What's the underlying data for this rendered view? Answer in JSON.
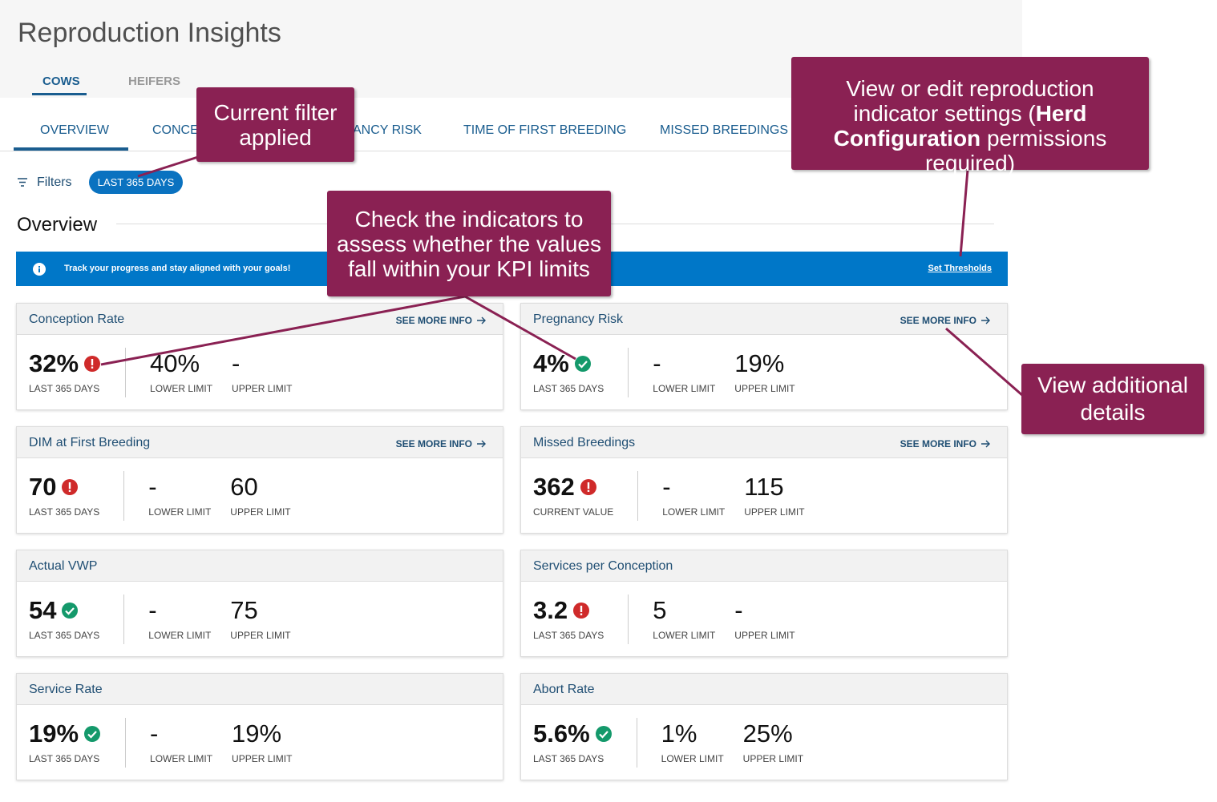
{
  "header": {
    "title": "Reproduction Insights",
    "tabs": [
      "COWS",
      "HEIFERS"
    ]
  },
  "nav": {
    "tabs": [
      "OVERVIEW",
      "CONCE",
      "ANCY RISK",
      "TIME OF FIRST BREEDING",
      "MISSED BREEDINGS"
    ]
  },
  "filters": {
    "label": "Filters",
    "chip": "LAST 365 DAYS"
  },
  "overview": {
    "heading": "Overview",
    "banner": "Track your progress and stay aligned with your goals!",
    "banner_link": "Set Thresholds"
  },
  "cards": [
    {
      "title": "Conception Rate",
      "link": "SEE MORE INFO",
      "value": "32%",
      "status": "alert",
      "period": "LAST 365 DAYS",
      "lower": "40%",
      "lower_label": "LOWER LIMIT",
      "upper": "-",
      "upper_label": "UPPER LIMIT"
    },
    {
      "title": "Pregnancy Risk",
      "link": "SEE MORE INFO",
      "value": "4%",
      "status": "ok",
      "period": "LAST 365 DAYS",
      "lower": "-",
      "lower_label": "LOWER LIMIT",
      "upper": "19%",
      "upper_label": "UPPER LIMIT"
    },
    {
      "title": "DIM at First Breeding",
      "link": "SEE MORE INFO",
      "value": "70",
      "status": "alert",
      "period": "LAST 365 DAYS",
      "lower": "-",
      "lower_label": "LOWER LIMIT",
      "upper": "60",
      "upper_label": "UPPER LIMIT"
    },
    {
      "title": "Missed Breedings",
      "link": "SEE MORE INFO",
      "value": "362",
      "status": "alert",
      "period": "CURRENT VALUE",
      "lower": "-",
      "lower_label": "LOWER LIMIT",
      "upper": "115",
      "upper_label": "UPPER LIMIT"
    },
    {
      "title": "Actual VWP",
      "value": "54",
      "status": "ok",
      "period": "LAST 365 DAYS",
      "lower": "-",
      "lower_label": "LOWER LIMIT",
      "upper": "75",
      "upper_label": "UPPER LIMIT"
    },
    {
      "title": "Services per Conception",
      "value": "3.2",
      "status": "alert",
      "period": "LAST 365 DAYS",
      "lower": "5",
      "lower_label": "LOWER LIMIT",
      "upper": "-",
      "upper_label": "UPPER LIMIT"
    },
    {
      "title": "Service Rate",
      "value": "19%",
      "status": "ok",
      "period": "LAST 365 DAYS",
      "lower": "-",
      "lower_label": "LOWER LIMIT",
      "upper": "19%",
      "upper_label": "UPPER LIMIT"
    },
    {
      "title": "Abort Rate",
      "value": "5.6%",
      "status": "ok",
      "period": "LAST 365 DAYS",
      "lower": "1%",
      "lower_label": "LOWER LIMIT",
      "upper": "25%",
      "upper_label": "UPPER LIMIT"
    }
  ],
  "callouts": [
    {
      "text": "Current filter applied"
    },
    {
      "parts": [
        "View or edit reproduction indicator settings (",
        "Herd Configuration",
        " permissions required)"
      ]
    },
    {
      "text": "Check the indicators to assess whether the values fall within your KPI limits"
    },
    {
      "text": "View additional details"
    }
  ]
}
